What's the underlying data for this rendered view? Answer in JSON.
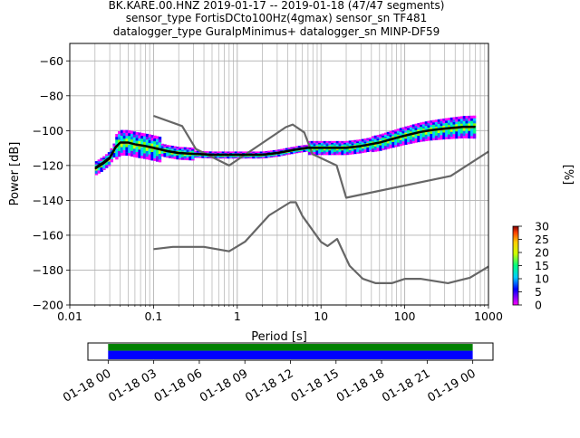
{
  "title_lines": [
    "BK.KARE.00.HNZ   2019-01-17 -- 2019-01-18  (47/47 segments)",
    "sensor_type FortisDCto100Hz(4gmax) sensor_sn TF481",
    "datalogger_type GuralpMinimus+ datalogger_sn MINP-DF59"
  ],
  "chart_data": [
    {
      "type": "heatmap",
      "title": "BK.KARE.00.HNZ   2019-01-17 -- 2019-01-18  (47/47 segments)",
      "xlabel": "Period [s]",
      "ylabel": "Power [dB]",
      "xscale": "log",
      "xlim": [
        0.01,
        1000
      ],
      "ylim": [
        -200,
        -50
      ],
      "xticks": [
        0.01,
        0.1,
        1,
        10,
        100,
        1000
      ],
      "xtick_labels": [
        "0.01",
        "0.1",
        "1",
        "10",
        "100",
        "1000"
      ],
      "yticks": [
        -200,
        -180,
        -160,
        -140,
        -120,
        -100,
        -80,
        -60
      ],
      "ytick_labels": [
        "−200",
        "−180",
        "−160",
        "−140",
        "−120",
        "−100",
        "−80",
        "−60"
      ],
      "grid": true,
      "colorbar": {
        "label": "[%]",
        "range": [
          0,
          30
        ],
        "ticks": [
          0,
          5,
          10,
          15,
          20,
          25,
          30
        ],
        "tick_labels": [
          "0",
          "5",
          "10",
          "15",
          "20",
          "25",
          "30"
        ]
      },
      "noise_model_high": {
        "x": [
          0.1,
          0.22,
          0.32,
          0.8,
          3.8,
          4.6,
          6.3,
          7.9,
          15.4,
          20,
          354.8,
          1000
        ],
        "y": [
          -91.5,
          -97.4,
          -110.5,
          -120,
          -98,
          -96.5,
          -101,
          -113.5,
          -120,
          -138.5,
          -126,
          -112
        ]
      },
      "noise_model_low": {
        "x": [
          0.1,
          0.17,
          0.4,
          0.8,
          1.24,
          2.4,
          4.3,
          5,
          6,
          10,
          12,
          15.6,
          21.9,
          31.6,
          45,
          70,
          101,
          154,
          328,
          600,
          1000
        ],
        "y": [
          -168,
          -166.7,
          -166.7,
          -169.2,
          -163.7,
          -148.6,
          -141.1,
          -141.1,
          -149,
          -163.8,
          -166.2,
          -162.1,
          -177.5,
          -185,
          -187.5,
          -187.5,
          -185,
          -185,
          -187.5,
          -184.4,
          -178
        ]
      },
      "mode_curve": {
        "x": [
          0.02,
          0.025,
          0.03,
          0.035,
          0.04,
          0.05,
          0.06,
          0.08,
          0.1,
          0.15,
          0.2,
          0.3,
          0.5,
          0.8,
          1,
          2,
          3,
          5,
          7,
          10,
          15,
          20,
          30,
          50,
          70,
          100,
          150,
          200,
          300,
          500,
          700
        ],
        "y": [
          -122,
          -119,
          -116,
          -110,
          -107,
          -107,
          -108,
          -109,
          -110,
          -112,
          -113,
          -113.5,
          -114,
          -114,
          -114,
          -114,
          -113,
          -111,
          -110,
          -110,
          -110,
          -110,
          -109,
          -107,
          -105,
          -103,
          -101,
          -100,
          -99,
          -98,
          -98
        ]
      },
      "mean_curve": {
        "x": [
          0.02,
          0.025,
          0.03,
          0.035,
          0.04,
          0.05,
          0.06,
          0.08,
          0.1,
          0.15,
          0.2,
          0.3,
          0.5,
          0.8,
          1,
          2,
          3,
          5,
          7,
          10,
          15,
          20,
          30,
          50,
          70,
          100,
          150,
          200,
          300,
          500,
          700
        ],
        "y": [
          -121,
          -118,
          -115,
          -109,
          -106.5,
          -106.5,
          -107.5,
          -108.5,
          -109.5,
          -111.5,
          -112.5,
          -113,
          -113.5,
          -113.5,
          -113.5,
          -113.5,
          -112.5,
          -110.5,
          -109.5,
          -109.5,
          -109.5,
          -109.5,
          -108.5,
          -106.5,
          -104.5,
          -102.5,
          -100.5,
          -99.5,
          -98.5,
          -97.5,
          -97.5
        ]
      }
    },
    {
      "type": "bar",
      "title": "",
      "xlabel": "",
      "ylabel": "",
      "x_range": [
        "2019-01-18 00:00",
        "2019-01-19 00:00"
      ],
      "x_window": [
        "2019-01-17 22:40",
        "2019-01-19 01:20"
      ],
      "xticks": [
        "2019-01-18 00:00",
        "2019-01-18 03:00",
        "2019-01-18 06:00",
        "2019-01-18 09:00",
        "2019-01-18 12:00",
        "2019-01-18 15:00",
        "2019-01-18 18:00",
        "2019-01-18 21:00",
        "2019-01-19 00:00"
      ],
      "xtick_labels": [
        "01-18 00",
        "01-18 03",
        "01-18 06",
        "01-18 09",
        "01-18 12",
        "01-18 15",
        "01-18 18",
        "01-18 21",
        "01-19 00"
      ],
      "series": [
        {
          "start": "2019-01-18 00:00",
          "end": "2019-01-19 00:00",
          "color": "#008000"
        },
        {
          "start": "2019-01-18 00:00",
          "end": "2019-01-19 00:00",
          "color": "#0000ff"
        }
      ]
    }
  ],
  "colors": {
    "noise_model": "#666666",
    "mode": "#000000",
    "grid": "#b0b0b0"
  }
}
